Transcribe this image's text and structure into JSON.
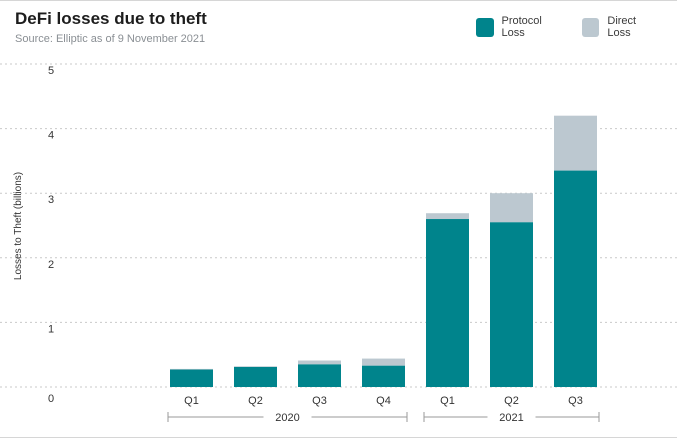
{
  "header": {
    "title": "DeFi losses due to theft",
    "subtitle": "Source: Elliptic as of 9 November 2021"
  },
  "colors": {
    "protocol": "#00848c",
    "direct": "#bcc8d0",
    "grid": "#c9c9c9"
  },
  "chart_data": {
    "type": "bar",
    "stacked": true,
    "title": "DeFi losses due to theft",
    "subtitle": "Source: Elliptic as of 9 November 2021",
    "ylabel": "Losses to Theft (billions)",
    "xlabel": "",
    "ylim": [
      0,
      5
    ],
    "yticks": [
      0,
      1,
      2,
      3,
      4,
      5
    ],
    "grid": true,
    "legend_position": "top-right",
    "categories": [
      "Q1",
      "Q2",
      "Q3",
      "Q4",
      "Q1",
      "Q2",
      "Q3"
    ],
    "groups": [
      {
        "label": "2020",
        "categories": [
          0,
          1,
          2,
          3
        ]
      },
      {
        "label": "2021",
        "categories": [
          4,
          5,
          6
        ]
      }
    ],
    "series": [
      {
        "name": "Protocol Loss",
        "values": [
          0.27,
          0.31,
          0.35,
          0.33,
          2.6,
          2.55,
          3.35
        ]
      },
      {
        "name": "Direct Loss",
        "values": [
          0.01,
          0.01,
          0.06,
          0.11,
          0.09,
          0.45,
          0.85
        ]
      }
    ]
  }
}
